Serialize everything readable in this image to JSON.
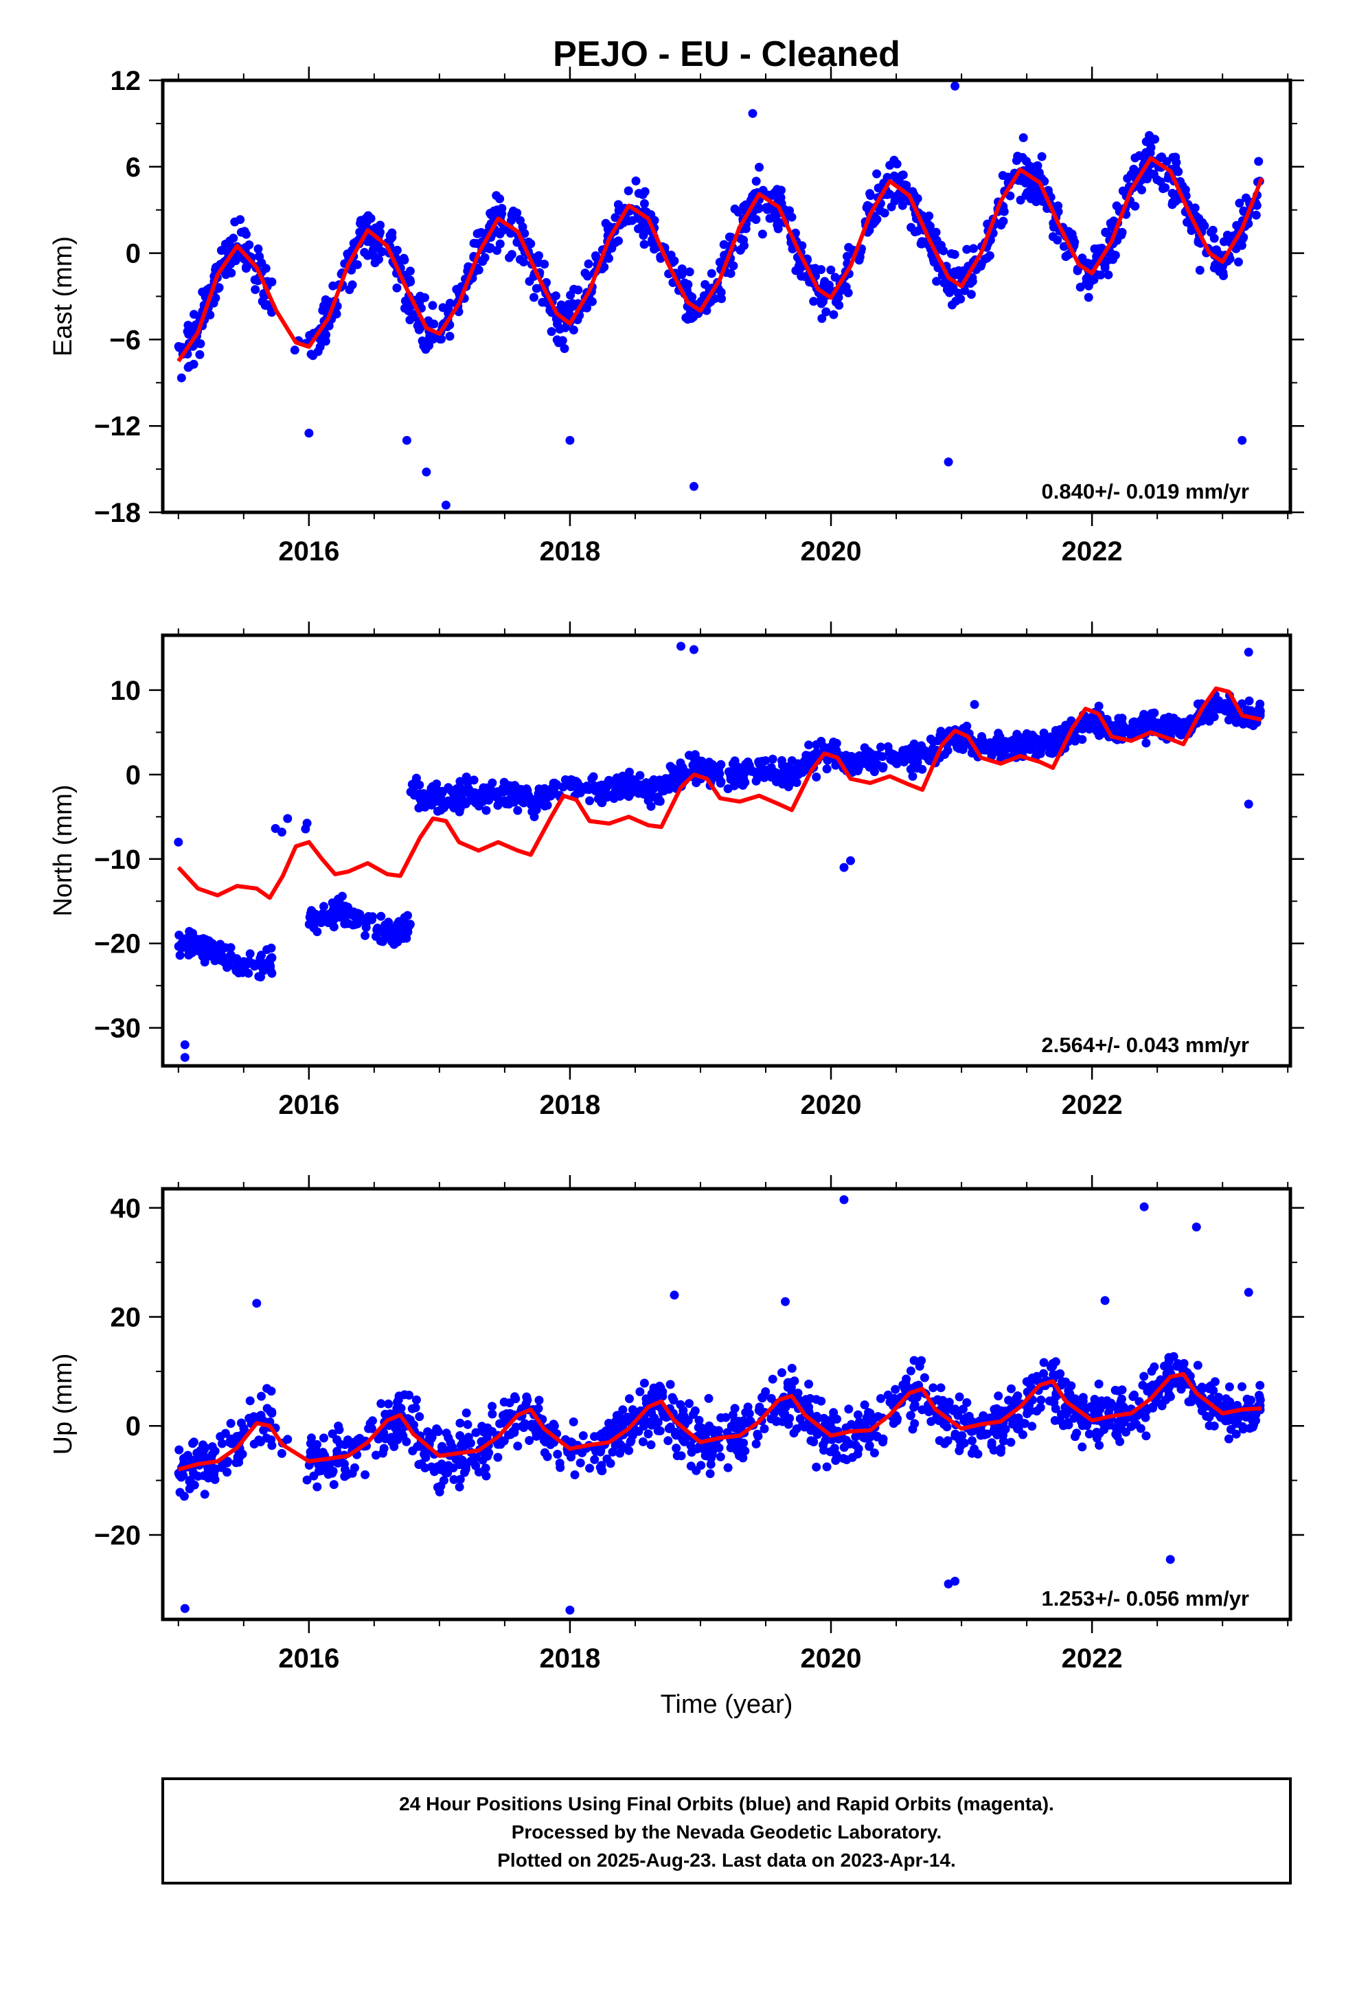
{
  "title": "PEJO  - EU - Cleaned",
  "xlabel": "Time (year)",
  "footer": {
    "line1": "24 Hour Positions Using Final Orbits (blue) and Rapid Orbits (magenta).",
    "line2": "Processed by the Nevada Geodetic Laboratory.",
    "line3": "Plotted on 2025-Aug-23. Last data on 2023-Apr-14."
  },
  "colors": {
    "points": "#0000ff",
    "fit": "#ff0000",
    "axes": "#000000"
  },
  "chart_data": [
    {
      "type": "scatter",
      "ylabel": "East (mm)",
      "rate_label": "0.840+/- 0.019 mm/yr",
      "xlim": [
        2014.88,
        2023.52
      ],
      "ylim": [
        -18,
        12
      ],
      "yticks": [
        12,
        6,
        0,
        -6,
        -12,
        -18
      ],
      "ytick_labels": [
        "12",
        "6",
        "0",
        "−6",
        "−12",
        "−18"
      ],
      "xticks": [
        2016,
        2018,
        2020,
        2022
      ],
      "xtick_labels": [
        "2016",
        "2018",
        "2020",
        "2022"
      ],
      "grid": false,
      "fit_line": [
        [
          2015.0,
          -7.5
        ],
        [
          2015.15,
          -5.5
        ],
        [
          2015.3,
          -1.5
        ],
        [
          2015.45,
          0.5
        ],
        [
          2015.6,
          -1.0
        ],
        [
          2015.75,
          -4.0
        ],
        [
          2015.9,
          -6.2
        ],
        [
          2016.0,
          -6.5
        ],
        [
          2016.15,
          -4.5
        ],
        [
          2016.3,
          -0.8
        ],
        [
          2016.45,
          1.6
        ],
        [
          2016.6,
          0.5
        ],
        [
          2016.75,
          -2.5
        ],
        [
          2016.9,
          -5.2
        ],
        [
          2017.0,
          -5.6
        ],
        [
          2017.15,
          -3.5
        ],
        [
          2017.3,
          0.0
        ],
        [
          2017.45,
          2.4
        ],
        [
          2017.6,
          1.5
        ],
        [
          2017.75,
          -1.5
        ],
        [
          2017.9,
          -4.2
        ],
        [
          2018.0,
          -4.9
        ],
        [
          2018.15,
          -2.6
        ],
        [
          2018.3,
          1.0
        ],
        [
          2018.45,
          3.3
        ],
        [
          2018.6,
          2.4
        ],
        [
          2018.75,
          -0.7
        ],
        [
          2018.9,
          -3.4
        ],
        [
          2019.0,
          -4.0
        ],
        [
          2019.15,
          -1.8
        ],
        [
          2019.3,
          1.8
        ],
        [
          2019.45,
          4.1
        ],
        [
          2019.6,
          3.2
        ],
        [
          2019.75,
          0.2
        ],
        [
          2019.9,
          -2.5
        ],
        [
          2020.0,
          -3.1
        ],
        [
          2020.15,
          -0.9
        ],
        [
          2020.3,
          2.7
        ],
        [
          2020.45,
          5.0
        ],
        [
          2020.6,
          4.0
        ],
        [
          2020.75,
          1.0
        ],
        [
          2020.9,
          -1.7
        ],
        [
          2021.0,
          -2.3
        ],
        [
          2021.15,
          0.0
        ],
        [
          2021.3,
          3.6
        ],
        [
          2021.45,
          5.8
        ],
        [
          2021.6,
          4.9
        ],
        [
          2021.75,
          1.9
        ],
        [
          2021.9,
          -0.8
        ],
        [
          2022.0,
          -1.4
        ],
        [
          2022.15,
          0.8
        ],
        [
          2022.3,
          4.4
        ],
        [
          2022.45,
          6.6
        ],
        [
          2022.6,
          5.7
        ],
        [
          2022.75,
          2.7
        ],
        [
          2022.9,
          0.0
        ],
        [
          2023.0,
          -0.6
        ],
        [
          2023.15,
          1.7
        ],
        [
          2023.3,
          5.2
        ]
      ],
      "scatter_model": {
        "offset": 0,
        "spread": 2.2,
        "outliers": [
          [
            2016.0,
            -12.5
          ],
          [
            2016.9,
            -15.2
          ],
          [
            2017.05,
            -17.5
          ],
          [
            2018.95,
            -16.2
          ],
          [
            2020.9,
            -14.5
          ],
          [
            2020.95,
            11.6
          ],
          [
            2019.4,
            9.7
          ],
          [
            2018.0,
            -13.0
          ],
          [
            2023.15,
            -13.0
          ],
          [
            2016.75,
            -13.0
          ]
        ]
      }
    },
    {
      "type": "scatter",
      "ylabel": "North (mm)",
      "rate_label": "2.564+/- 0.043 mm/yr",
      "xlim": [
        2014.88,
        2023.52
      ],
      "ylim": [
        -34.5,
        16.5
      ],
      "yticks": [
        10,
        0,
        -10,
        -20,
        -30
      ],
      "ytick_labels": [
        "10",
        "0",
        "−10",
        "−20",
        "−30"
      ],
      "xticks": [
        2016,
        2018,
        2020,
        2022
      ],
      "xtick_labels": [
        "2016",
        "2018",
        "2020",
        "2022"
      ],
      "grid": false,
      "fit_line": [
        [
          2015.0,
          -11.0
        ],
        [
          2015.15,
          -13.5
        ],
        [
          2015.3,
          -14.3
        ],
        [
          2015.45,
          -13.2
        ],
        [
          2015.6,
          -13.5
        ],
        [
          2015.7,
          -14.6
        ],
        [
          2015.8,
          -12.0
        ],
        [
          2015.9,
          -8.5
        ],
        [
          2016.0,
          -8.0
        ],
        [
          2016.1,
          -10.0
        ],
        [
          2016.2,
          -11.8
        ],
        [
          2016.3,
          -11.5
        ],
        [
          2016.45,
          -10.5
        ],
        [
          2016.6,
          -11.8
        ],
        [
          2016.7,
          -12.0
        ],
        [
          2016.85,
          -7.5
        ],
        [
          2016.95,
          -5.2
        ],
        [
          2017.05,
          -5.5
        ],
        [
          2017.15,
          -8.0
        ],
        [
          2017.3,
          -9.0
        ],
        [
          2017.45,
          -8.0
        ],
        [
          2017.6,
          -9.0
        ],
        [
          2017.7,
          -9.5
        ],
        [
          2017.85,
          -5.2
        ],
        [
          2017.95,
          -2.5
        ],
        [
          2018.05,
          -3.0
        ],
        [
          2018.15,
          -5.5
        ],
        [
          2018.3,
          -5.8
        ],
        [
          2018.45,
          -5.0
        ],
        [
          2018.6,
          -6.0
        ],
        [
          2018.7,
          -6.2
        ],
        [
          2018.85,
          -1.5
        ],
        [
          2018.95,
          0.0
        ],
        [
          2019.05,
          -0.5
        ],
        [
          2019.15,
          -2.8
        ],
        [
          2019.3,
          -3.2
        ],
        [
          2019.45,
          -2.5
        ],
        [
          2019.6,
          -3.5
        ],
        [
          2019.7,
          -4.2
        ],
        [
          2019.85,
          0.5
        ],
        [
          2019.95,
          2.5
        ],
        [
          2020.05,
          2.0
        ],
        [
          2020.15,
          -0.5
        ],
        [
          2020.3,
          -1.0
        ],
        [
          2020.45,
          -0.2
        ],
        [
          2020.6,
          -1.2
        ],
        [
          2020.7,
          -1.8
        ],
        [
          2020.85,
          3.5
        ],
        [
          2020.95,
          5.2
        ],
        [
          2021.05,
          4.5
        ],
        [
          2021.15,
          2.0
        ],
        [
          2021.3,
          1.3
        ],
        [
          2021.45,
          2.2
        ],
        [
          2021.6,
          1.5
        ],
        [
          2021.7,
          0.8
        ],
        [
          2021.85,
          5.5
        ],
        [
          2021.95,
          7.8
        ],
        [
          2022.05,
          7.2
        ],
        [
          2022.15,
          4.5
        ],
        [
          2022.3,
          4.0
        ],
        [
          2022.45,
          5.0
        ],
        [
          2022.6,
          4.2
        ],
        [
          2022.7,
          3.6
        ],
        [
          2022.85,
          8.0
        ],
        [
          2022.95,
          10.2
        ],
        [
          2023.05,
          9.8
        ],
        [
          2023.15,
          7.0
        ],
        [
          2023.3,
          6.5
        ]
      ],
      "scatter_model": {
        "offset": 0,
        "spread": 2.0,
        "outliers": [
          [
            2015.05,
            -33.5
          ],
          [
            2015.05,
            -32.0
          ],
          [
            2015.0,
            -8.0
          ],
          [
            2018.85,
            15.2
          ],
          [
            2018.95,
            14.8
          ],
          [
            2023.2,
            14.5
          ],
          [
            2020.1,
            -11.0
          ],
          [
            2020.15,
            -10.2
          ],
          [
            2021.1,
            8.3
          ],
          [
            2023.2,
            -3.5
          ]
        ]
      }
    },
    {
      "type": "scatter",
      "ylabel": "Up (mm)",
      "rate_label": "1.253+/- 0.056 mm/yr",
      "xlim": [
        2014.88,
        2023.52
      ],
      "ylim": [
        -35.5,
        43.5
      ],
      "yticks": [
        40,
        20,
        0,
        -20
      ],
      "ytick_labels": [
        "40",
        "20",
        "0",
        "−20"
      ],
      "xticks": [
        2016,
        2018,
        2020,
        2022
      ],
      "xtick_labels": [
        "2016",
        "2018",
        "2020",
        "2022"
      ],
      "grid": false,
      "fit_line": [
        [
          2015.0,
          -8.0
        ],
        [
          2015.15,
          -7.0
        ],
        [
          2015.3,
          -6.5
        ],
        [
          2015.45,
          -4.0
        ],
        [
          2015.6,
          0.5
        ],
        [
          2015.7,
          0.0
        ],
        [
          2015.8,
          -3.5
        ],
        [
          2016.0,
          -6.5
        ],
        [
          2016.15,
          -6.0
        ],
        [
          2016.3,
          -5.5
        ],
        [
          2016.45,
          -3.0
        ],
        [
          2016.6,
          1.0
        ],
        [
          2016.7,
          2.0
        ],
        [
          2016.8,
          -1.5
        ],
        [
          2017.0,
          -5.5
        ],
        [
          2017.15,
          -5.0
        ],
        [
          2017.3,
          -4.5
        ],
        [
          2017.45,
          -2.0
        ],
        [
          2017.6,
          2.0
        ],
        [
          2017.7,
          3.0
        ],
        [
          2017.8,
          -0.5
        ],
        [
          2018.0,
          -4.2
        ],
        [
          2018.15,
          -3.5
        ],
        [
          2018.3,
          -3.0
        ],
        [
          2018.45,
          -0.5
        ],
        [
          2018.6,
          3.5
        ],
        [
          2018.7,
          4.5
        ],
        [
          2018.8,
          1.0
        ],
        [
          2019.0,
          -3.0
        ],
        [
          2019.15,
          -2.2
        ],
        [
          2019.3,
          -1.8
        ],
        [
          2019.45,
          0.8
        ],
        [
          2019.6,
          4.8
        ],
        [
          2019.7,
          5.5
        ],
        [
          2019.8,
          2.0
        ],
        [
          2020.0,
          -1.8
        ],
        [
          2020.15,
          -1.0
        ],
        [
          2020.3,
          -0.8
        ],
        [
          2020.45,
          2.0
        ],
        [
          2020.6,
          6.0
        ],
        [
          2020.7,
          6.8
        ],
        [
          2020.8,
          3.0
        ],
        [
          2021.0,
          -0.5
        ],
        [
          2021.15,
          0.3
        ],
        [
          2021.3,
          0.8
        ],
        [
          2021.45,
          3.5
        ],
        [
          2021.6,
          7.5
        ],
        [
          2021.7,
          8.2
        ],
        [
          2021.8,
          4.5
        ],
        [
          2022.0,
          1.0
        ],
        [
          2022.15,
          1.8
        ],
        [
          2022.3,
          2.3
        ],
        [
          2022.45,
          5.0
        ],
        [
          2022.6,
          9.0
        ],
        [
          2022.7,
          9.5
        ],
        [
          2022.8,
          6.0
        ],
        [
          2023.0,
          2.3
        ],
        [
          2023.15,
          3.0
        ],
        [
          2023.3,
          3.2
        ]
      ],
      "scatter_model": {
        "offset": 0,
        "spread": 6.5,
        "outliers": [
          [
            2015.05,
            -33.5
          ],
          [
            2018.0,
            -33.8
          ],
          [
            2020.1,
            41.5
          ],
          [
            2022.4,
            40.2
          ],
          [
            2022.8,
            36.5
          ],
          [
            2020.9,
            -29.0
          ],
          [
            2020.95,
            -28.5
          ],
          [
            2015.6,
            22.5
          ],
          [
            2018.8,
            24.0
          ],
          [
            2019.65,
            22.8
          ],
          [
            2022.1,
            23.0
          ],
          [
            2023.2,
            24.5
          ],
          [
            2022.6,
            -24.5
          ]
        ]
      }
    }
  ]
}
